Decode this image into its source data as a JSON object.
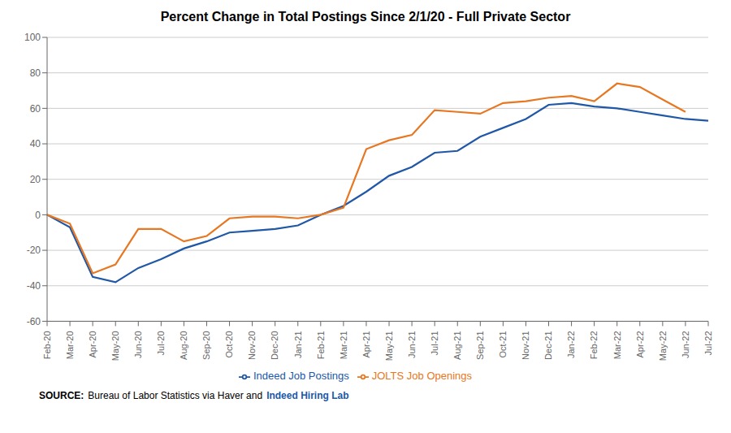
{
  "chart_data": {
    "type": "line",
    "title": "Percent Change in Total Postings Since 2/1/20 - Full Private Sector",
    "categories": [
      "Feb-20",
      "Mar-20",
      "Apr-20",
      "May-20",
      "Jun-20",
      "Jul-20",
      "Aug-20",
      "Sep-20",
      "Oct-20",
      "Nov-20",
      "Dec-20",
      "Jan-21",
      "Feb-21",
      "Mar-21",
      "Apr-21",
      "May-21",
      "Jun-21",
      "Jul-21",
      "Aug-21",
      "Sep-21",
      "Oct-21",
      "Nov-21",
      "Dec-21",
      "Jan-22",
      "Feb-22",
      "Mar-22",
      "Apr-22",
      "May-22",
      "Jun-22",
      "Jul-22"
    ],
    "series": [
      {
        "name": "Indeed Job Postings",
        "color": "#2058A8",
        "values": [
          0,
          -7,
          -35,
          -38,
          -30,
          -25,
          -19,
          -15,
          -10,
          -9,
          -8,
          -6,
          0,
          5,
          13,
          22,
          27,
          35,
          36,
          44,
          49,
          54,
          62,
          63,
          61,
          60,
          58,
          56,
          54,
          53
        ]
      },
      {
        "name": "JOLTS Job Openings",
        "color": "#E87722",
        "values": [
          0,
          -5,
          -33,
          -28,
          -8,
          -8,
          -15,
          -12,
          -2,
          -1,
          -1,
          -2,
          0,
          4,
          37,
          42,
          45,
          59,
          58,
          57,
          63,
          64,
          66,
          67,
          64,
          74,
          72,
          65,
          58,
          null
        ]
      }
    ],
    "ylim": [
      -60,
      100
    ],
    "yticks": [
      -60,
      -40,
      -20,
      0,
      20,
      40,
      60,
      80,
      100
    ],
    "grid": true,
    "legend": "bottom",
    "annotations": [
      "SOURCE:",
      "Bureau of Labor Statistics via Haver and",
      "Indeed Hiring Lab"
    ]
  }
}
